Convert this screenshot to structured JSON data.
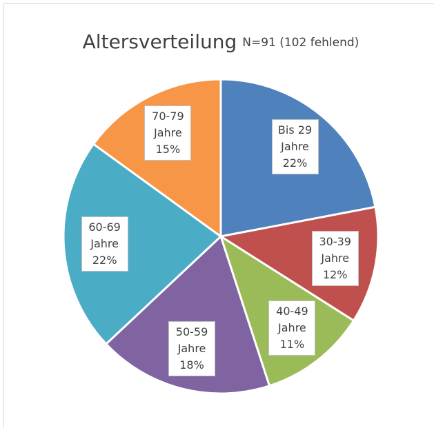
{
  "chart_data": {
    "type": "pie",
    "title": "Altersverteilung",
    "subtitle": "N=91 (102 fehlend)",
    "categories": [
      "Bis 29 Jahre",
      "30-39 Jahre",
      "40-49 Jahre",
      "50-59 Jahre",
      "60-69 Jahre",
      "70-79 Jahre"
    ],
    "values": [
      22,
      12,
      11,
      18,
      22,
      15
    ],
    "value_labels": [
      "22%",
      "12%",
      "11%",
      "18%",
      "22%",
      "15%"
    ],
    "colors": [
      "#4f81bd",
      "#c0504d",
      "#9bbb59",
      "#8064a2",
      "#4bacc6",
      "#f79646"
    ]
  }
}
